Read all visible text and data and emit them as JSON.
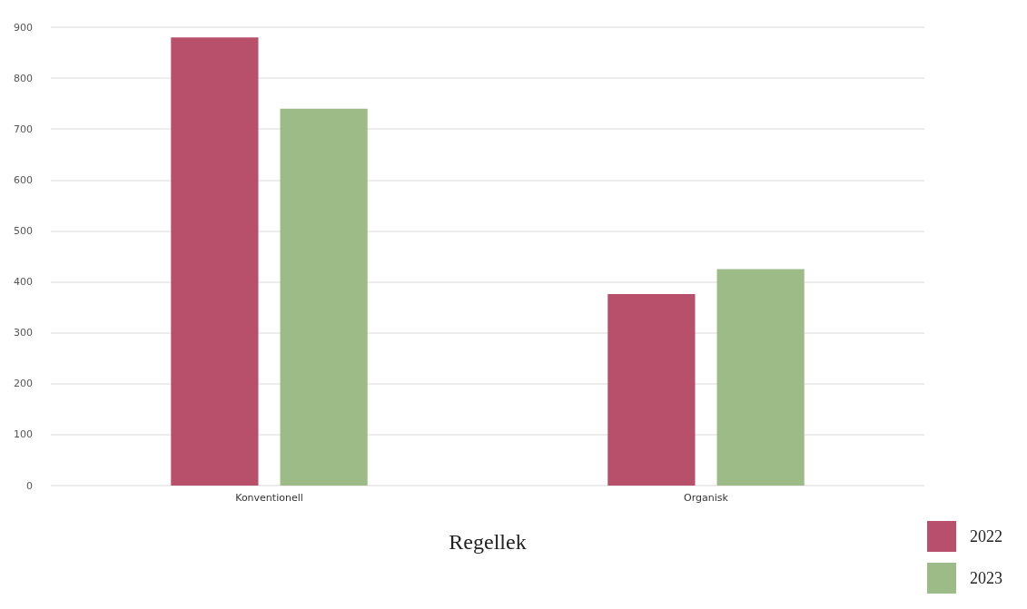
{
  "chart_data": {
    "type": "bar",
    "xlabel": "Regellek",
    "categories": [
      "Konventionell",
      "Organisk"
    ],
    "series": [
      {
        "name": "2022",
        "color": "#b84f6b",
        "values": [
          880,
          376
        ]
      },
      {
        "name": "2023",
        "color": "#9dbb87",
        "values": [
          740,
          425
        ]
      }
    ],
    "ylim": [
      0,
      900
    ],
    "yticks": [
      0,
      100,
      200,
      300,
      400,
      500,
      600,
      700,
      800,
      900
    ],
    "grid": "y",
    "legend": "bottom right"
  }
}
